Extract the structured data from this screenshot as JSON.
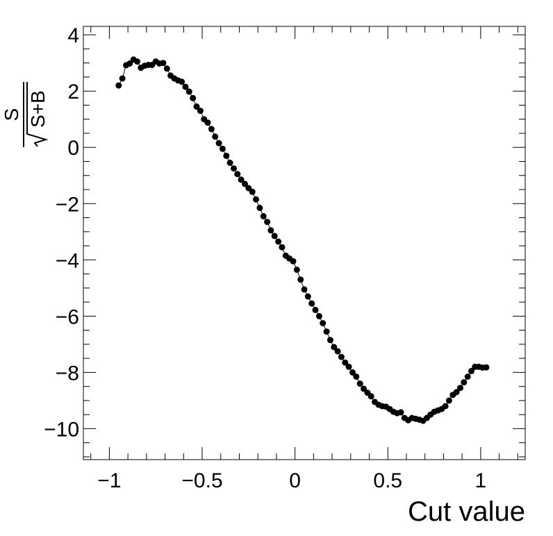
{
  "chart_data": {
    "type": "scatter",
    "title": "",
    "xlabel": "Cut value",
    "ylabel": {
      "numerator": "S",
      "denominator": "S+B"
    },
    "xlim": [
      -1.14,
      1.24
    ],
    "ylim": [
      -11.1,
      4.3
    ],
    "grid": false,
    "legend": "none",
    "x_ticks": [
      {
        "value": -1,
        "label": "−1"
      },
      {
        "value": -0.5,
        "label": "−0.5"
      },
      {
        "value": 0,
        "label": "0"
      },
      {
        "value": 0.5,
        "label": "0.5"
      },
      {
        "value": 1,
        "label": "1"
      }
    ],
    "y_ticks": [
      {
        "value": 4,
        "label": "4"
      },
      {
        "value": 2,
        "label": "2"
      },
      {
        "value": 0,
        "label": "0"
      },
      {
        "value": -2,
        "label": "−2"
      },
      {
        "value": -4,
        "label": "−4"
      },
      {
        "value": -6,
        "label": "−6"
      },
      {
        "value": -8,
        "label": "−8"
      },
      {
        "value": -10,
        "label": "−10"
      }
    ],
    "marker_color": "#000000",
    "line_color": "#000000",
    "series": [
      {
        "x": [
          -0.95,
          -0.93,
          -0.91,
          -0.89,
          -0.87,
          -0.85,
          -0.83,
          -0.81,
          -0.79,
          -0.77,
          -0.75,
          -0.73,
          -0.71,
          -0.69,
          -0.67,
          -0.65,
          -0.63,
          -0.61,
          -0.59,
          -0.57,
          -0.55,
          -0.53,
          -0.51,
          -0.49,
          -0.47,
          -0.45,
          -0.43,
          -0.41,
          -0.39,
          -0.37,
          -0.35,
          -0.33,
          -0.31,
          -0.29,
          -0.27,
          -0.25,
          -0.23,
          -0.21,
          -0.19,
          -0.17,
          -0.15,
          -0.13,
          -0.11,
          -0.09,
          -0.07,
          -0.05,
          -0.03,
          -0.01,
          0.01,
          0.03,
          0.05,
          0.07,
          0.09,
          0.11,
          0.13,
          0.15,
          0.17,
          0.19,
          0.21,
          0.23,
          0.25,
          0.27,
          0.29,
          0.31,
          0.33,
          0.35,
          0.37,
          0.39,
          0.41,
          0.43,
          0.45,
          0.47,
          0.49,
          0.51,
          0.53,
          0.55,
          0.57,
          0.59,
          0.61,
          0.63,
          0.65,
          0.67,
          0.69,
          0.71,
          0.73,
          0.75,
          0.77,
          0.79,
          0.81,
          0.83,
          0.85,
          0.87,
          0.89,
          0.91,
          0.93,
          0.95,
          0.97,
          0.99,
          1.01,
          1.03
        ],
        "y": [
          2.2,
          2.45,
          2.92,
          2.98,
          3.12,
          3.05,
          2.83,
          2.9,
          2.93,
          2.93,
          3.05,
          2.98,
          3.0,
          2.8,
          2.55,
          2.45,
          2.38,
          2.33,
          2.15,
          1.98,
          1.75,
          1.45,
          1.3,
          1.0,
          0.88,
          0.65,
          0.38,
          0.15,
          -0.05,
          -0.3,
          -0.55,
          -0.75,
          -0.95,
          -1.15,
          -1.3,
          -1.45,
          -1.58,
          -1.85,
          -2.15,
          -2.45,
          -2.65,
          -2.95,
          -3.15,
          -3.35,
          -3.55,
          -3.85,
          -3.95,
          -4.05,
          -4.35,
          -4.7,
          -5.05,
          -5.3,
          -5.55,
          -5.78,
          -6.0,
          -6.25,
          -6.55,
          -6.85,
          -7.1,
          -7.25,
          -7.45,
          -7.65,
          -7.8,
          -8.0,
          -8.15,
          -8.4,
          -8.58,
          -8.72,
          -8.85,
          -9.05,
          -9.15,
          -9.2,
          -9.22,
          -9.3,
          -9.4,
          -9.45,
          -9.42,
          -9.62,
          -9.7,
          -9.62,
          -9.65,
          -9.68,
          -9.72,
          -9.62,
          -9.5,
          -9.4,
          -9.35,
          -9.3,
          -9.2,
          -9.0,
          -8.8,
          -8.7,
          -8.55,
          -8.35,
          -8.15,
          -7.95,
          -7.8,
          -7.8,
          -7.83,
          -7.82
        ]
      }
    ]
  }
}
